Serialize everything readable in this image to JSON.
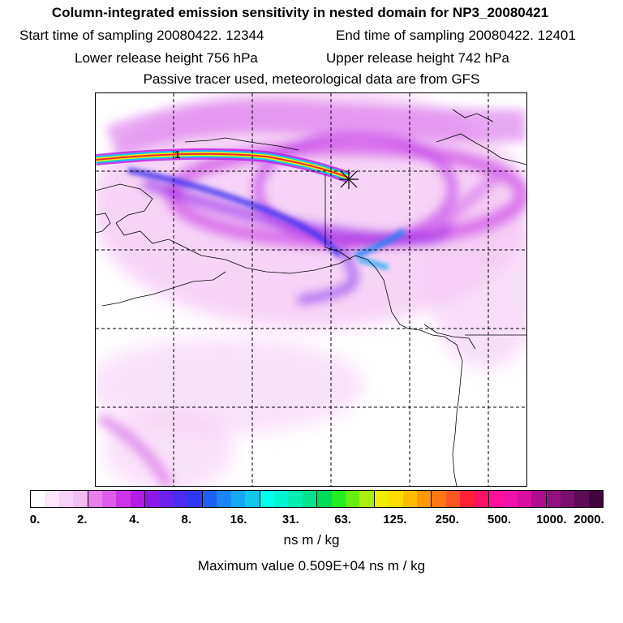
{
  "header": {
    "title": "Column-integrated emission sensitivity in nested domain for NP3_20080421",
    "start_label": "Start time of sampling 20080422. 12344",
    "end_label": "End time of sampling 20080422. 12401",
    "lower_label": "Lower release height  756 hPa",
    "upper_label": "Upper release height  742 hPa",
    "tracer_label": "Passive tracer used, meteorological data are from GFS"
  },
  "map": {
    "release_marker_label": "1"
  },
  "colorbar": {
    "tick_labels": [
      "0.",
      "2.",
      "4.",
      "8.",
      "16.",
      "31.",
      "63.",
      "125.",
      "250.",
      "500.",
      "1000.",
      "2000."
    ],
    "colors": [
      "#ffffff",
      "#fbe6fb",
      "#f7d2f7",
      "#f2bdf2",
      "#e880ec",
      "#dd5ee9",
      "#cc33e6",
      "#b41be6",
      "#8c1ae6",
      "#6a22ee",
      "#4a2cf2",
      "#2c38f4",
      "#1f5ff5",
      "#1a86f5",
      "#16a8f3",
      "#10c8ee",
      "#00ffee",
      "#00f5d0",
      "#00eeb0",
      "#00e58c",
      "#00dd55",
      "#22ee22",
      "#66ee11",
      "#aaee11",
      "#eeee00",
      "#ffdd00",
      "#ffbb00",
      "#ff9900",
      "#ff7711",
      "#ff5522",
      "#ff2233",
      "#ff1166",
      "#ff1199",
      "#f011aa",
      "#d80ea0",
      "#b00c90",
      "#941080",
      "#7a0f70",
      "#5e0b55",
      "#40053a"
    ],
    "unit_label": "ns m / kg"
  },
  "max_value_label": "Maximum value  0.509E+04 ns m / kg"
}
